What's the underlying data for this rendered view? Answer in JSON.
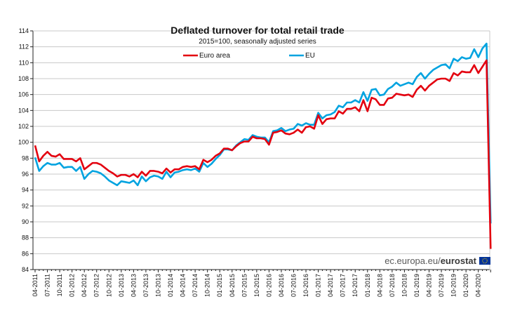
{
  "chart_data": {
    "type": "line",
    "title": "Deflated turnover for total retail trade",
    "subtitle": "2015=100, seasonally adjusted series",
    "xlabel": "",
    "ylabel": "",
    "ylim": [
      84,
      114
    ],
    "yticks": [
      84,
      86,
      88,
      90,
      92,
      94,
      96,
      98,
      100,
      102,
      104,
      106,
      108,
      110,
      112,
      114
    ],
    "x_tick_labels": [
      "04-2011",
      "07-2011",
      "10-2011",
      "01-2012",
      "04-2012",
      "07-2012",
      "10-2012",
      "01-2013",
      "04-2013",
      "07-2013",
      "10-2013",
      "01-2014",
      "04-2014",
      "07-2014",
      "10-2014",
      "01-2015",
      "04-2015",
      "07-2015",
      "10-2015",
      "01-2016",
      "04-2016",
      "07-2016",
      "10-2016",
      "01-2017",
      "04-2017",
      "07-2017",
      "10-2017",
      "01-2018",
      "04-2018",
      "07-2018",
      "10-2018",
      "01-2019",
      "04-2019",
      "07-2019",
      "10-2019",
      "01-2020",
      "04-2020"
    ],
    "grid": true,
    "legend_placement": "top",
    "series": [
      {
        "name": "Euro area",
        "color": "#e3000f",
        "values": [
          99.6,
          97.6,
          98.3,
          98.8,
          98.3,
          98.2,
          98.5,
          97.9,
          97.9,
          97.9,
          97.6,
          98.0,
          96.6,
          97.0,
          97.4,
          97.4,
          97.2,
          96.8,
          96.4,
          96.1,
          95.7,
          95.9,
          95.9,
          95.7,
          96.0,
          95.6,
          96.3,
          95.8,
          96.4,
          96.4,
          96.3,
          96.1,
          96.7,
          96.2,
          96.6,
          96.6,
          96.9,
          97.0,
          96.9,
          97.0,
          96.6,
          97.8,
          97.5,
          97.8,
          98.3,
          98.6,
          99.2,
          99.2,
          99.0,
          99.5,
          99.9,
          100.1,
          100.1,
          100.7,
          100.5,
          100.5,
          100.4,
          99.7,
          101.2,
          101.3,
          101.5,
          101.1,
          101.0,
          101.2,
          101.6,
          101.2,
          101.9,
          102.0,
          101.7,
          103.4,
          102.3,
          102.9,
          103.0,
          103.0,
          103.9,
          103.6,
          104.2,
          104.2,
          104.4,
          103.9,
          105.3,
          103.9,
          105.6,
          105.4,
          104.7,
          104.7,
          105.5,
          105.6,
          106.1,
          106.0,
          105.9,
          106.0,
          105.7,
          106.6,
          107.1,
          106.5,
          107.1,
          107.5,
          107.9,
          108.0,
          108.0,
          107.7,
          108.7,
          108.4,
          108.9,
          108.8,
          108.8,
          109.7,
          108.7,
          109.5,
          110.3,
          86.6
        ]
      },
      {
        "name": "EU",
        "color": "#00a3e0",
        "values": [
          98.1,
          96.4,
          97.0,
          97.4,
          97.2,
          97.2,
          97.4,
          96.8,
          96.9,
          96.9,
          96.4,
          96.9,
          95.4,
          96.0,
          96.4,
          96.3,
          96.1,
          95.7,
          95.2,
          94.9,
          94.6,
          95.1,
          95.0,
          94.9,
          95.2,
          94.6,
          95.7,
          95.1,
          95.6,
          95.8,
          95.7,
          95.4,
          96.3,
          95.6,
          96.2,
          96.3,
          96.5,
          96.6,
          96.5,
          96.7,
          96.3,
          97.4,
          96.9,
          97.3,
          97.9,
          98.4,
          99.1,
          99.1,
          99.0,
          99.6,
          100.0,
          100.4,
          100.3,
          100.9,
          100.7,
          100.6,
          100.6,
          100.0,
          101.4,
          101.5,
          101.8,
          101.4,
          101.6,
          101.7,
          102.3,
          102.1,
          102.4,
          102.2,
          102.2,
          103.7,
          103.0,
          103.4,
          103.5,
          103.8,
          104.6,
          104.4,
          105.0,
          105.0,
          105.3,
          105.0,
          106.3,
          105.2,
          106.6,
          106.7,
          105.9,
          106.0,
          106.7,
          107.0,
          107.5,
          107.1,
          107.3,
          107.5,
          107.3,
          108.2,
          108.7,
          108.0,
          108.6,
          109.1,
          109.4,
          109.7,
          109.8,
          109.3,
          110.5,
          110.2,
          110.7,
          110.5,
          110.6,
          111.7,
          110.7,
          111.8,
          112.4,
          89.8
        ]
      }
    ]
  },
  "legend": {
    "euro_area": "Euro area",
    "eu": "EU"
  },
  "source": {
    "prefix": "ec.europa.eu/",
    "brand": "eurostat"
  },
  "colors": {
    "euro_area": "#e3000f",
    "eu": "#00a3e0",
    "grid": "#c8c8c8",
    "axis": "#222222"
  }
}
